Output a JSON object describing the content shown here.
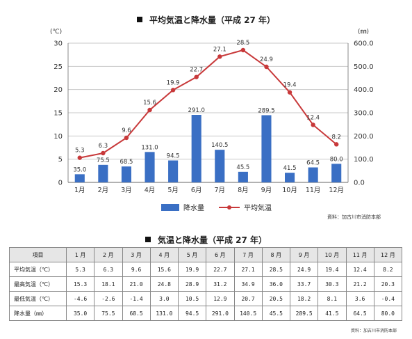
{
  "chart_data": [
    {
      "type": "bar+line",
      "title": "平均気温と降水量（平成 27 年）",
      "categories": [
        "1月",
        "2月",
        "3月",
        "4月",
        "5月",
        "6月",
        "7月",
        "8月",
        "9月",
        "10月",
        "11月",
        "12月"
      ],
      "series": [
        {
          "name": "降水量",
          "type": "bar",
          "axis": "right",
          "color": "#3a6fc4",
          "values": [
            35.0,
            75.5,
            68.5,
            131.0,
            94.5,
            291.0,
            140.5,
            45.5,
            289.5,
            41.5,
            64.5,
            80.0
          ]
        },
        {
          "name": "平均気温",
          "type": "line",
          "axis": "left",
          "color": "#c8393a",
          "values": [
            5.3,
            6.3,
            9.6,
            15.6,
            19.9,
            22.7,
            27.1,
            28.5,
            24.9,
            19.4,
            12.4,
            8.2
          ]
        }
      ],
      "left_axis": {
        "unit": "(℃)",
        "min": 0,
        "max": 30,
        "ticks": [
          0,
          5,
          10,
          15,
          20,
          25,
          30
        ]
      },
      "right_axis": {
        "unit": "(㎜)",
        "min": 0,
        "max": 600,
        "ticks": [
          "0.0",
          "100.0",
          "200.0",
          "300.0",
          "400.0",
          "500.0",
          "600.0"
        ]
      },
      "grid": true,
      "legend_position": "bottom",
      "source": "資料：加古川市消防本部"
    },
    {
      "type": "table",
      "title": "気温と降水量（平成 27 年）",
      "columns": [
        "項目",
        "1 月",
        "2 月",
        "3 月",
        "4 月",
        "5 月",
        "6 月",
        "7 月",
        "8 月",
        "9 月",
        "10 月",
        "11 月",
        "12 月"
      ],
      "rows": [
        {
          "label": "平均気温（℃）",
          "values": [
            "5.3",
            "6.3",
            "9.6",
            "15.6",
            "19.9",
            "22.7",
            "27.1",
            "28.5",
            "24.9",
            "19.4",
            "12.4",
            "8.2"
          ]
        },
        {
          "label": "最高気温（℃）",
          "values": [
            "15.3",
            "18.1",
            "21.0",
            "24.8",
            "28.9",
            "31.2",
            "34.9",
            "36.0",
            "33.7",
            "30.3",
            "21.2",
            "20.3"
          ]
        },
        {
          "label": "最低気温（℃）",
          "values": [
            "-4.6",
            "-2.6",
            "-1.4",
            "3.0",
            "10.5",
            "12.9",
            "20.7",
            "20.5",
            "18.2",
            "8.1",
            "3.6",
            "-0.4"
          ]
        },
        {
          "label": "降水量（㎜）",
          "values": [
            "35.0",
            "75.5",
            "68.5",
            "131.0",
            "94.5",
            "291.0",
            "140.5",
            "45.5",
            "289.5",
            "41.5",
            "64.5",
            "80.0"
          ]
        }
      ],
      "source": "資料：加古川市消防本部"
    }
  ]
}
